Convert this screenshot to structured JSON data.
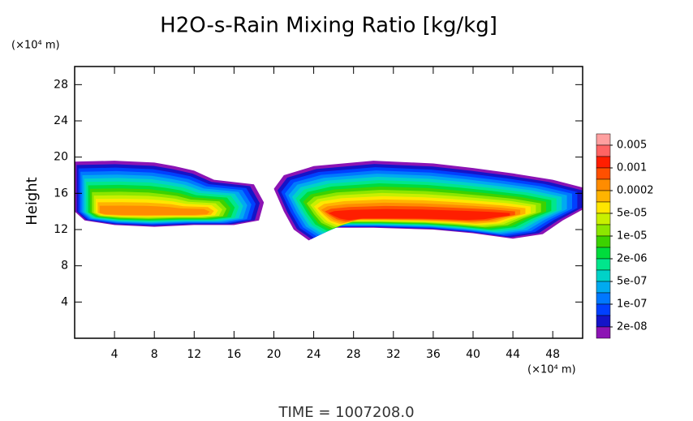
{
  "chart_data": {
    "type": "contour",
    "title": "H2O-s-Rain Mixing Ratio [kg/kg]",
    "ylabel": "Height",
    "x_unit": "(×10⁴ m)",
    "y_unit": "(×10⁴ m)",
    "footer": "TIME = 1007208.0",
    "xlim": [
      0,
      51
    ],
    "xticks": [
      4,
      8,
      12,
      16,
      20,
      24,
      28,
      32,
      36,
      40,
      44,
      48
    ],
    "ylim": [
      0,
      30
    ],
    "yticks": [
      4,
      8,
      12,
      16,
      20,
      24,
      28
    ],
    "colorbar": {
      "colors": [
        "#ffa0a0",
        "#ff6464",
        "#ff1e00",
        "#ff5000",
        "#ff8c00",
        "#ffb400",
        "#ffe600",
        "#c8f000",
        "#8ce600",
        "#3cd200",
        "#00dc3c",
        "#00e68c",
        "#00d2c8",
        "#00aaf0",
        "#0078ff",
        "#0040ff",
        "#1414c8",
        "#8c14b4"
      ],
      "ticks": [
        0.005,
        0.001,
        0.0002,
        {
          "value": 5e-05,
          "label": "5e-05"
        },
        {
          "value": 1e-05,
          "label": "1e-05"
        },
        {
          "value": 2e-06,
          "label": "2e-06"
        },
        {
          "value": 5e-07,
          "label": "5e-07"
        },
        {
          "value": 1e-07,
          "label": "1e-07"
        },
        {
          "value": 2e-08,
          "label": "2e-08"
        }
      ]
    }
  }
}
